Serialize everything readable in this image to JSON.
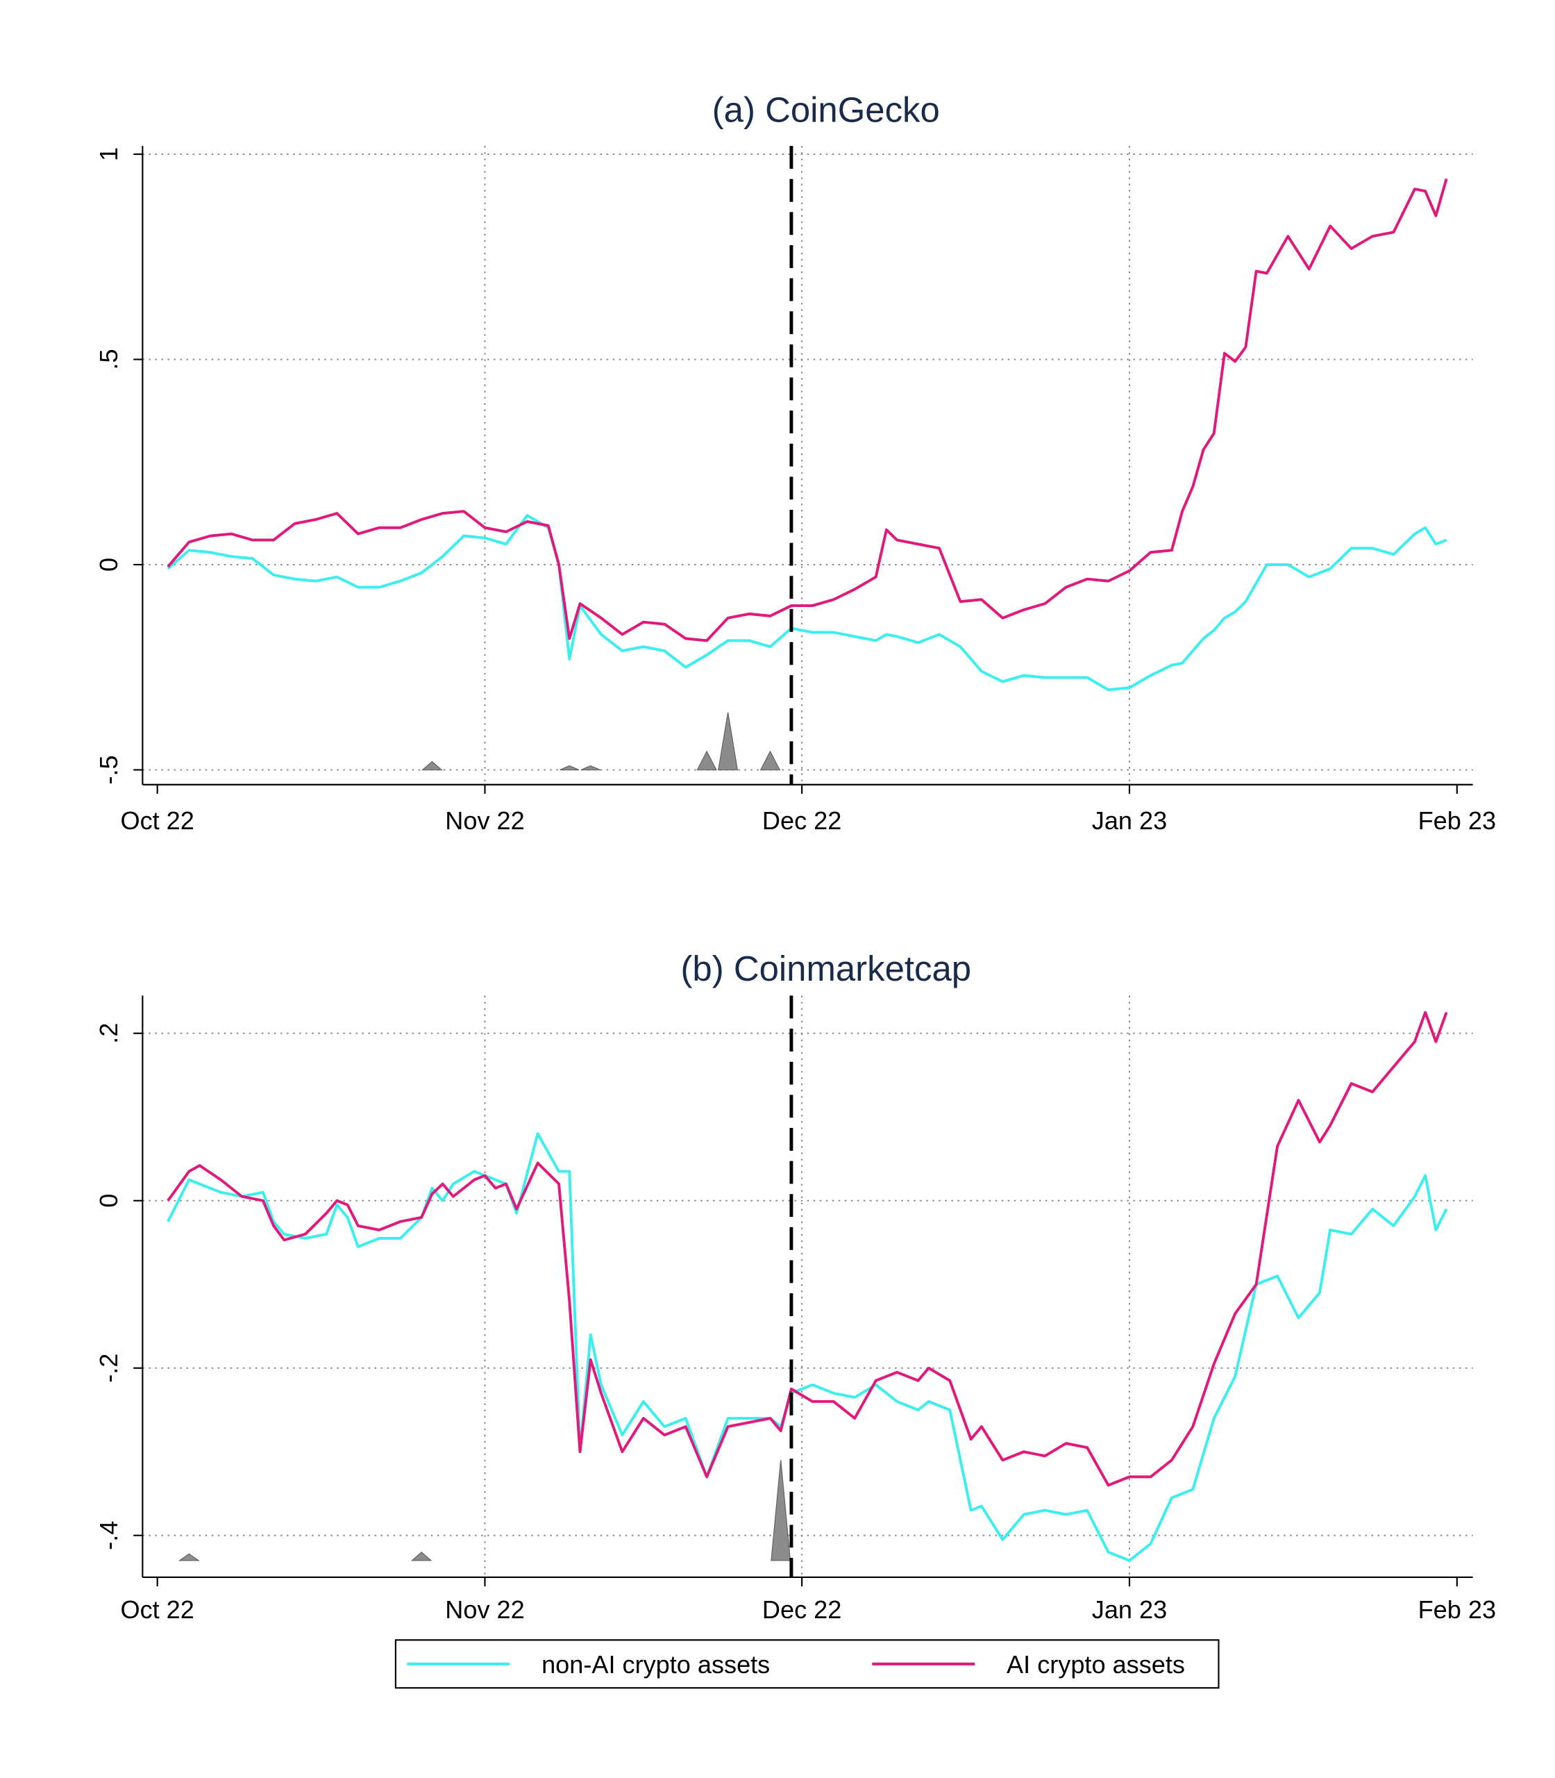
{
  "chart_data": [
    {
      "type": "line",
      "title": "(a) CoinGecko",
      "x": [
        1,
        3,
        5,
        7,
        9,
        11,
        13,
        15,
        17,
        19,
        21,
        23,
        25,
        27,
        29,
        31,
        33,
        35,
        37,
        38,
        39,
        40,
        42,
        44,
        46,
        48,
        50,
        52,
        54,
        56,
        58,
        60,
        62,
        64,
        66,
        68,
        69,
        70,
        72,
        74,
        76,
        78,
        80,
        82,
        84,
        86,
        88,
        90,
        92,
        94,
        96,
        97,
        98,
        99,
        100,
        101,
        102,
        103,
        104,
        105,
        107,
        109,
        111,
        113,
        115,
        117,
        119,
        120,
        121,
        122
      ],
      "series": [
        {
          "name": "non-AI crypto assets",
          "color": "#3ceeee",
          "values": [
            -0.01,
            0.035,
            0.03,
            0.02,
            0.015,
            -0.025,
            -0.035,
            -0.04,
            -0.03,
            -0.055,
            -0.055,
            -0.04,
            -0.02,
            0.02,
            0.07,
            0.065,
            0.05,
            0.12,
            0.09,
            0.0,
            -0.23,
            -0.1,
            -0.17,
            -0.21,
            -0.2,
            -0.21,
            -0.25,
            -0.22,
            -0.185,
            -0.185,
            -0.2,
            -0.155,
            -0.165,
            -0.165,
            -0.175,
            -0.185,
            -0.17,
            -0.175,
            -0.19,
            -0.17,
            -0.2,
            -0.26,
            -0.285,
            -0.27,
            -0.275,
            -0.275,
            -0.275,
            -0.305,
            -0.3,
            -0.27,
            -0.245,
            -0.24,
            -0.21,
            -0.18,
            -0.16,
            -0.13,
            -0.115,
            -0.09,
            -0.045,
            0.0,
            0.0,
            -0.03,
            -0.01,
            0.04,
            0.04,
            0.025,
            0.075,
            0.09,
            0.05,
            0.06
          ]
        },
        {
          "name": "AI crypto assets",
          "color": "#e0197a",
          "values": [
            -0.005,
            0.055,
            0.07,
            0.075,
            0.06,
            0.06,
            0.1,
            0.11,
            0.125,
            0.075,
            0.09,
            0.09,
            0.11,
            0.125,
            0.13,
            0.09,
            0.08,
            0.105,
            0.095,
            0.0,
            -0.18,
            -0.095,
            -0.13,
            -0.17,
            -0.14,
            -0.145,
            -0.18,
            -0.185,
            -0.13,
            -0.12,
            -0.125,
            -0.1,
            -0.1,
            -0.085,
            -0.06,
            -0.03,
            0.085,
            0.06,
            0.05,
            0.04,
            -0.09,
            -0.085,
            -0.13,
            -0.11,
            -0.095,
            -0.055,
            -0.035,
            -0.04,
            -0.015,
            0.03,
            0.035,
            0.13,
            0.19,
            0.28,
            0.32,
            0.515,
            0.495,
            0.53,
            0.715,
            0.71,
            0.8,
            0.72,
            0.825,
            0.77,
            0.8,
            0.81,
            0.915,
            0.91,
            0.85,
            0.94
          ]
        }
      ],
      "spikes": {
        "x": [
          26,
          39,
          41,
          52,
          54,
          58
        ],
        "values": [
          -0.48,
          -0.49,
          -0.49,
          -0.455,
          -0.36,
          -0.455
        ],
        "color": "#8c8c8c"
      },
      "spike_base": -0.5,
      "event_x": 60,
      "xlim": [
        -1.4,
        124.5
      ],
      "xticks": [
        {
          "value": 0,
          "label": "Oct 22"
        },
        {
          "value": 31,
          "label": "Nov 22"
        },
        {
          "value": 61,
          "label": "Dec 22"
        },
        {
          "value": 92,
          "label": "Jan 23"
        },
        {
          "value": 123,
          "label": "Feb 23"
        }
      ],
      "ylim": [
        -0.536,
        1.02
      ],
      "yticks": [
        {
          "value": -0.5,
          "label": "-.5"
        },
        0,
        {
          "value": 0.5,
          "label": ".5"
        },
        1
      ],
      "grid": true
    },
    {
      "type": "line",
      "title": "(b) Coinmarketcap",
      "x": [
        1,
        3,
        4,
        6,
        8,
        10,
        11,
        12,
        14,
        16,
        17,
        18,
        19,
        21,
        23,
        25,
        26,
        27,
        28,
        30,
        31,
        32,
        33,
        34,
        36,
        38,
        39,
        40,
        41,
        42,
        44,
        46,
        48,
        50,
        52,
        54,
        56,
        58,
        59,
        60,
        62,
        64,
        66,
        68,
        70,
        72,
        73,
        75,
        77,
        78,
        80,
        82,
        84,
        86,
        88,
        90,
        92,
        94,
        96,
        98,
        100,
        102,
        104,
        106,
        108,
        110,
        111,
        113,
        115,
        117,
        119,
        120,
        121,
        122
      ],
      "series": [
        {
          "color": "#3ceeee",
          "values": [
            -0.025,
            0.025,
            0.02,
            0.01,
            0.005,
            0.01,
            -0.025,
            -0.04,
            -0.045,
            -0.04,
            -0.005,
            -0.02,
            -0.055,
            -0.045,
            -0.045,
            -0.02,
            0.015,
            0.0,
            0.02,
            0.035,
            0.03,
            0.025,
            0.02,
            -0.015,
            0.08,
            0.035,
            0.035,
            -0.3,
            -0.16,
            -0.22,
            -0.28,
            -0.24,
            -0.27,
            -0.26,
            -0.33,
            -0.26,
            -0.26,
            -0.26,
            -0.27,
            -0.23,
            -0.22,
            -0.23,
            -0.235,
            -0.22,
            -0.24,
            -0.25,
            -0.24,
            -0.25,
            -0.37,
            -0.365,
            -0.405,
            -0.375,
            -0.37,
            -0.375,
            -0.37,
            -0.42,
            -0.43,
            -0.41,
            -0.355,
            -0.345,
            -0.26,
            -0.21,
            -0.1,
            -0.09,
            -0.14,
            -0.11,
            -0.035,
            -0.04,
            -0.01,
            -0.03,
            0.005,
            0.03,
            -0.035,
            -0.01
          ]
        },
        {
          "color": "#e0197a",
          "values": [
            0.0,
            0.035,
            0.042,
            0.025,
            0.005,
            0.0,
            -0.03,
            -0.047,
            -0.04,
            -0.015,
            0.0,
            -0.005,
            -0.03,
            -0.035,
            -0.025,
            -0.02,
            0.008,
            0.02,
            0.005,
            0.025,
            0.03,
            0.015,
            0.02,
            -0.01,
            0.045,
            0.02,
            -0.12,
            -0.3,
            -0.19,
            -0.23,
            -0.3,
            -0.26,
            -0.28,
            -0.27,
            -0.33,
            -0.27,
            -0.265,
            -0.26,
            -0.275,
            -0.225,
            -0.24,
            -0.24,
            -0.26,
            -0.215,
            -0.205,
            -0.215,
            -0.2,
            -0.215,
            -0.285,
            -0.27,
            -0.31,
            -0.3,
            -0.305,
            -0.29,
            -0.295,
            -0.34,
            -0.33,
            -0.33,
            -0.31,
            -0.27,
            -0.195,
            -0.135,
            -0.1,
            0.065,
            0.12,
            0.07,
            0.09,
            0.14,
            0.13,
            0.16,
            0.19,
            0.225,
            0.19,
            0.225
          ]
        }
      ],
      "spikes": {
        "x": [
          3,
          25,
          59
        ],
        "values": [
          -0.422,
          -0.42,
          -0.31
        ],
        "color": "#8c8c8c"
      },
      "spike_base": -0.43,
      "event_x": 60,
      "xlim": [
        -1.4,
        124.5
      ],
      "xticks": [
        {
          "value": 0,
          "label": "Oct 22"
        },
        {
          "value": 31,
          "label": "Nov 22"
        },
        {
          "value": 61,
          "label": "Dec 22"
        },
        {
          "value": 92,
          "label": "Jan 23"
        },
        {
          "value": 123,
          "label": "Feb 23"
        }
      ],
      "ylim": [
        -0.45,
        0.245
      ],
      "yticks": [
        {
          "value": -0.4,
          "label": "-.4"
        },
        {
          "value": -0.2,
          "label": "-.2"
        },
        0,
        {
          "value": 0.2,
          "label": ".2"
        }
      ],
      "grid": true
    }
  ]
}
